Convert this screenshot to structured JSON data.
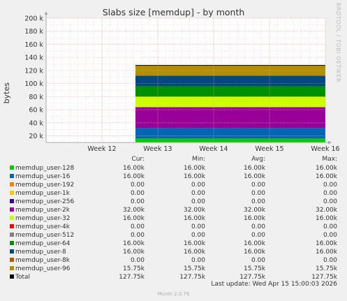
{
  "title": "Slabs size [memdup] - by month",
  "side_label": "RRDTOOL / TOBI OETIKER",
  "headers": {
    "cur": "Cur:",
    "min": "Min:",
    "avg": "Avg:",
    "max": "Max:"
  },
  "legend": [
    {
      "name": "memdup_user-128",
      "color": "#00cc00",
      "cur": "16.00k",
      "min": "16.00k",
      "avg": "16.00k",
      "max": "16.00k"
    },
    {
      "name": "memdup_user-16",
      "color": "#0066b3",
      "cur": "16.00k",
      "min": "16.00k",
      "avg": "16.00k",
      "max": "16.00k"
    },
    {
      "name": "memdup_user-192",
      "color": "#ff8000",
      "cur": "0.00",
      "min": "0.00",
      "avg": "0.00",
      "max": "0.00"
    },
    {
      "name": "memdup_user-1k",
      "color": "#ffcc00",
      "cur": "0.00",
      "min": "0.00",
      "avg": "0.00",
      "max": "0.00"
    },
    {
      "name": "memdup_user-256",
      "color": "#330099",
      "cur": "0.00",
      "min": "0.00",
      "avg": "0.00",
      "max": "0.00"
    },
    {
      "name": "memdup_user-2k",
      "color": "#990099",
      "cur": "32.00k",
      "min": "32.00k",
      "avg": "32.00k",
      "max": "32.00k"
    },
    {
      "name": "memdup_user-32",
      "color": "#ccff00",
      "cur": "16.00k",
      "min": "16.00k",
      "avg": "16.00k",
      "max": "16.00k"
    },
    {
      "name": "memdup_user-4k",
      "color": "#ff0000",
      "cur": "0.00",
      "min": "0.00",
      "avg": "0.00",
      "max": "0.00"
    },
    {
      "name": "memdup_user-512",
      "color": "#808080",
      "cur": "0.00",
      "min": "0.00",
      "avg": "0.00",
      "max": "0.00"
    },
    {
      "name": "memdup_user-64",
      "color": "#008f00",
      "cur": "16.00k",
      "min": "16.00k",
      "avg": "16.00k",
      "max": "16.00k"
    },
    {
      "name": "memdup_user-8",
      "color": "#00487d",
      "cur": "16.00k",
      "min": "16.00k",
      "avg": "16.00k",
      "max": "16.00k"
    },
    {
      "name": "memdup_user-8k",
      "color": "#b35a00",
      "cur": "0.00",
      "min": "0.00",
      "avg": "0.00",
      "max": "0.00"
    },
    {
      "name": "memdup_user-96",
      "color": "#b38f00",
      "cur": "15.75k",
      "min": "15.75k",
      "avg": "15.75k",
      "max": "15.75k"
    },
    {
      "name": "Total",
      "color": "#000000",
      "cur": "127.75k",
      "min": "127.75k",
      "avg": "127.75k",
      "max": "127.75k"
    }
  ],
  "last_update": "Last update: Wed Apr 15 15:00:03 2026",
  "munin_version": "Munin 2.0.76",
  "chart_data": {
    "type": "area",
    "title": "Slabs size [memdup] - by month",
    "ylabel": "bytes",
    "xlabel": "",
    "ylim": [
      10000,
      200000
    ],
    "yticks": [
      20000,
      40000,
      60000,
      80000,
      100000,
      120000,
      140000,
      160000,
      180000,
      200000
    ],
    "ytick_labels": [
      "20 k",
      "40 k",
      "60 k",
      "80 k",
      "100 k",
      "120 k",
      "140 k",
      "160 k",
      "180 k",
      "200 k"
    ],
    "x_categories": [
      "Week 12",
      "Week 13",
      "Week 14",
      "Week 15",
      "Week 16"
    ],
    "x_range": [
      11.0,
      16.0
    ],
    "data_start": 12.6,
    "stacked": true,
    "series": [
      {
        "name": "memdup_user-128",
        "color": "#00cc00",
        "value": 16000
      },
      {
        "name": "memdup_user-16",
        "color": "#0066b3",
        "value": 16000
      },
      {
        "name": "memdup_user-192",
        "color": "#ff8000",
        "value": 0
      },
      {
        "name": "memdup_user-1k",
        "color": "#ffcc00",
        "value": 0
      },
      {
        "name": "memdup_user-256",
        "color": "#330099",
        "value": 0
      },
      {
        "name": "memdup_user-2k",
        "color": "#990099",
        "value": 32000
      },
      {
        "name": "memdup_user-32",
        "color": "#ccff00",
        "value": 16000
      },
      {
        "name": "memdup_user-4k",
        "color": "#ff0000",
        "value": 0
      },
      {
        "name": "memdup_user-512",
        "color": "#808080",
        "value": 0
      },
      {
        "name": "memdup_user-64",
        "color": "#008f00",
        "value": 16000
      },
      {
        "name": "memdup_user-8",
        "color": "#00487d",
        "value": 16000
      },
      {
        "name": "memdup_user-8k",
        "color": "#b35a00",
        "value": 0
      },
      {
        "name": "memdup_user-96",
        "color": "#b38f00",
        "value": 15750
      }
    ],
    "total": 127750,
    "grid": true
  }
}
